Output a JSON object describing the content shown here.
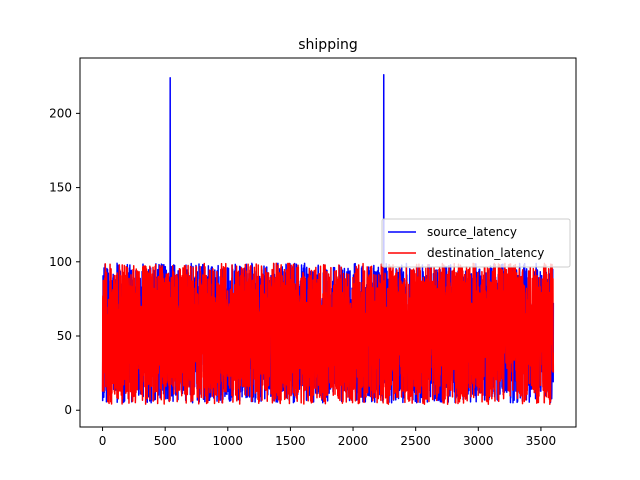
{
  "chart_data": {
    "type": "line",
    "title": "shipping",
    "xlabel": "",
    "ylabel": "",
    "xlim": [
      -180,
      3780
    ],
    "ylim": [
      -11.3,
      237.3
    ],
    "xticks": [
      0,
      500,
      1000,
      1500,
      2000,
      2500,
      3000,
      3500
    ],
    "yticks": [
      0,
      50,
      100,
      150,
      200
    ],
    "grid": false,
    "legend_position": "center-right",
    "x_range": [
      0,
      3599
    ],
    "series": [
      {
        "name": "source_latency",
        "color": "#0000ff",
        "value_range": [
          5,
          99
        ],
        "spikes": [
          {
            "x": 540,
            "y": 224
          },
          {
            "x": 2245,
            "y": 226
          }
        ]
      },
      {
        "name": "destination_latency",
        "color": "#ff0000",
        "value_range": [
          4,
          99
        ],
        "gaps": [
          {
            "x": 1115,
            "low": 4,
            "high": 21
          },
          {
            "x": 1660,
            "low": 4,
            "high": 22
          },
          {
            "x": 2570,
            "low": 4,
            "high": 36
          },
          {
            "x": 3080,
            "low": 4,
            "high": 48
          }
        ]
      }
    ]
  }
}
